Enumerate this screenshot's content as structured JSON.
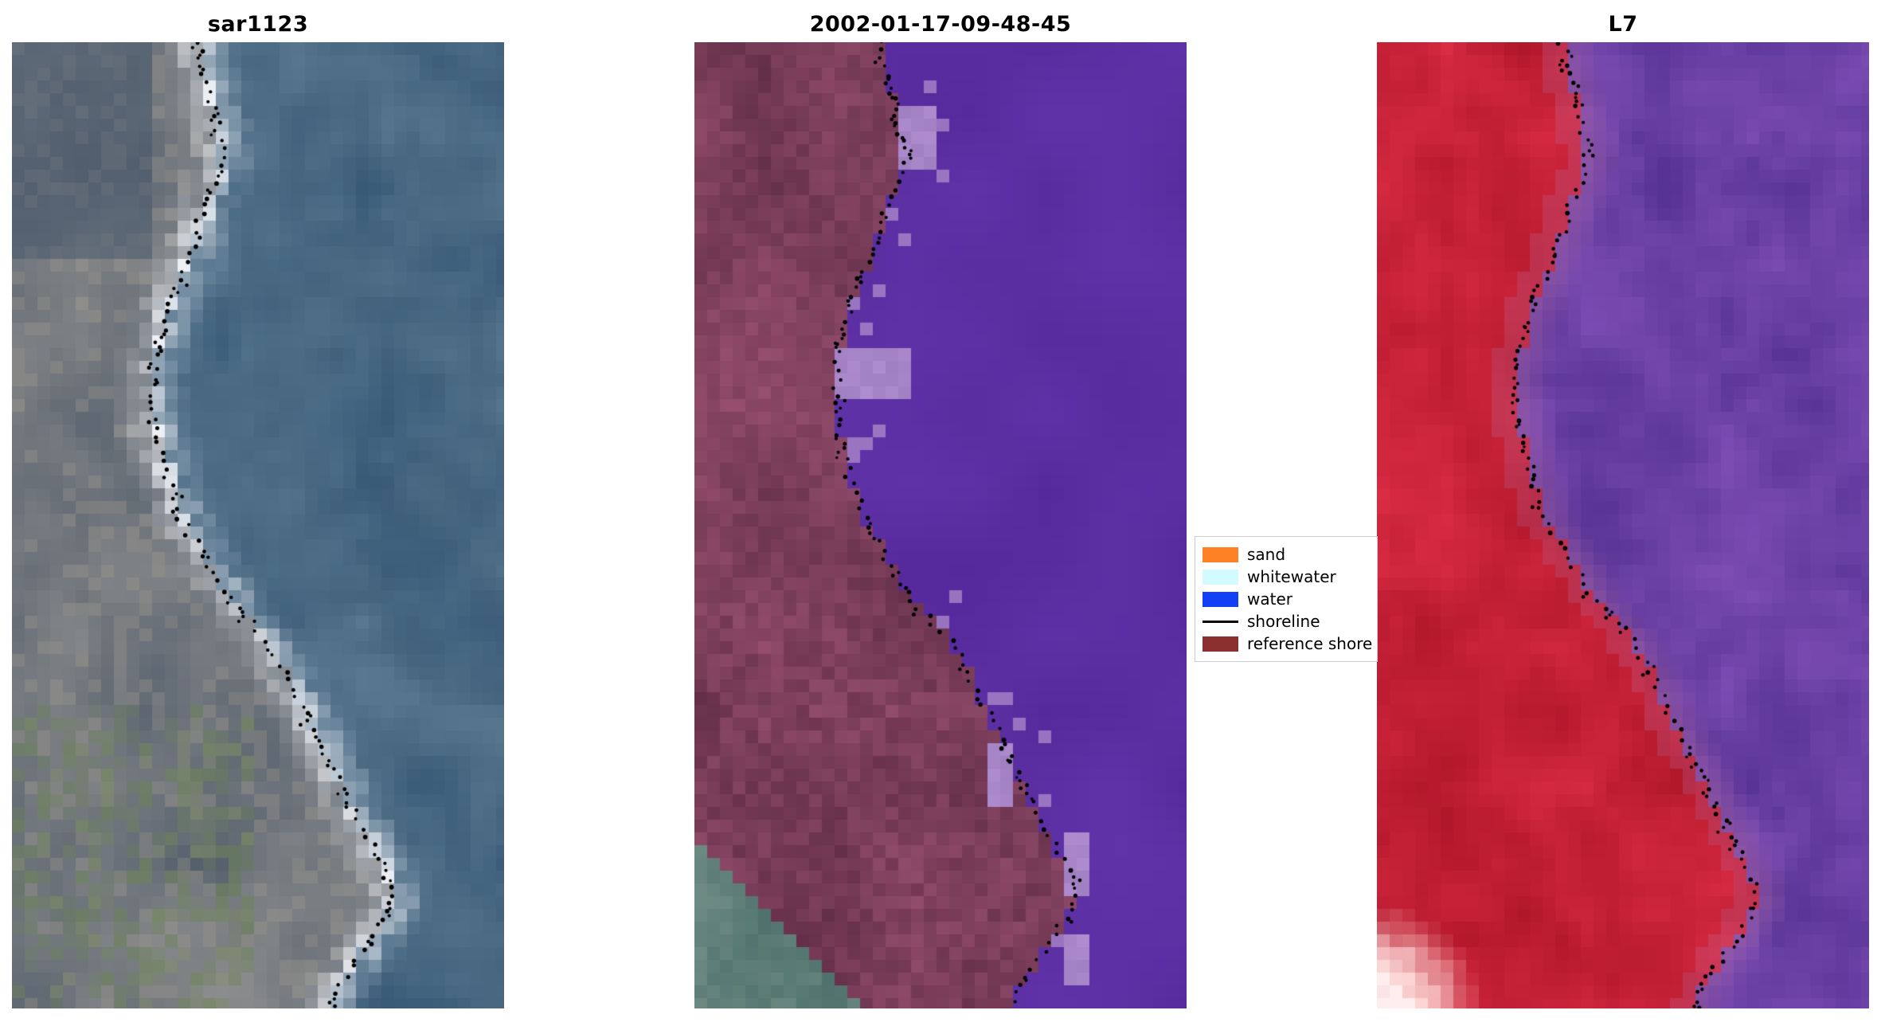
{
  "figure": {
    "background": "#ffffff",
    "panels": [
      {
        "title": "sar1123",
        "type": "sar",
        "seed": 11
      },
      {
        "title": "2002-01-17-09-48-45",
        "type": "classified",
        "seed": 23
      },
      {
        "title": "L7",
        "type": "l7",
        "seed": 37
      }
    ],
    "legend": {
      "entries": [
        {
          "label": "sand",
          "swatch": "patch",
          "color": "#ff8125"
        },
        {
          "label": "whitewater",
          "swatch": "patch",
          "color": "#d2fbff"
        },
        {
          "label": "water",
          "swatch": "patch",
          "color": "#1240f5"
        },
        {
          "label": "shoreline",
          "swatch": "line",
          "color": "#000000"
        },
        {
          "label": "reference shore",
          "swatch": "patch",
          "color": "#8c2f2f"
        }
      ]
    },
    "palettes": {
      "sar": {
        "water": "#4a6a84",
        "land": "#6f757c",
        "green": "#6d8457",
        "bright": "#eceff4"
      },
      "classified": {
        "purple": "#5b2ea2",
        "maroon": "#7d3f5c",
        "lavender": "#a886c8",
        "corner": "#5f7e78"
      },
      "l7": {
        "red": "#c52136",
        "purple": "#6a40a4",
        "edge": "#b66ba0",
        "pink": "#ffd9d6"
      }
    },
    "lavender_patches": [
      {
        "u": 0.42,
        "v": 0.066,
        "w": 0.06,
        "h": 0.071
      },
      {
        "u": 0.295,
        "v": 0.31,
        "w": 0.145,
        "h": 0.062
      },
      {
        "u": 0.605,
        "v": 0.727,
        "w": 0.055,
        "h": 0.065
      },
      {
        "u": 0.74,
        "v": 0.82,
        "w": 0.063,
        "h": 0.062
      },
      {
        "u": 0.754,
        "v": 0.928,
        "w": 0.05,
        "h": 0.042
      }
    ]
  },
  "chart_data": {
    "type": "scatter",
    "title": "",
    "subplot_titles": [
      "sar1123",
      "2002-01-17-09-48-45",
      "L7"
    ],
    "legend_entries": [
      "sand",
      "whitewater",
      "water",
      "shoreline",
      "reference shore"
    ],
    "legend_position": "center-right between second and third panel",
    "grid": false,
    "shoreline_path_normalized_vu": [
      [
        0.0,
        0.375
      ],
      [
        0.04,
        0.395
      ],
      [
        0.08,
        0.415
      ],
      [
        0.12,
        0.43
      ],
      [
        0.16,
        0.4
      ],
      [
        0.2,
        0.375
      ],
      [
        0.24,
        0.345
      ],
      [
        0.28,
        0.31
      ],
      [
        0.33,
        0.29
      ],
      [
        0.38,
        0.285
      ],
      [
        0.42,
        0.3
      ],
      [
        0.46,
        0.32
      ],
      [
        0.5,
        0.35
      ],
      [
        0.54,
        0.4
      ],
      [
        0.58,
        0.45
      ],
      [
        0.62,
        0.52
      ],
      [
        0.66,
        0.565
      ],
      [
        0.7,
        0.6
      ],
      [
        0.74,
        0.64
      ],
      [
        0.78,
        0.68
      ],
      [
        0.82,
        0.72
      ],
      [
        0.86,
        0.76
      ],
      [
        0.89,
        0.775
      ],
      [
        0.92,
        0.74
      ],
      [
        0.95,
        0.7
      ],
      [
        0.98,
        0.66
      ],
      [
        1.0,
        0.65
      ]
    ]
  }
}
